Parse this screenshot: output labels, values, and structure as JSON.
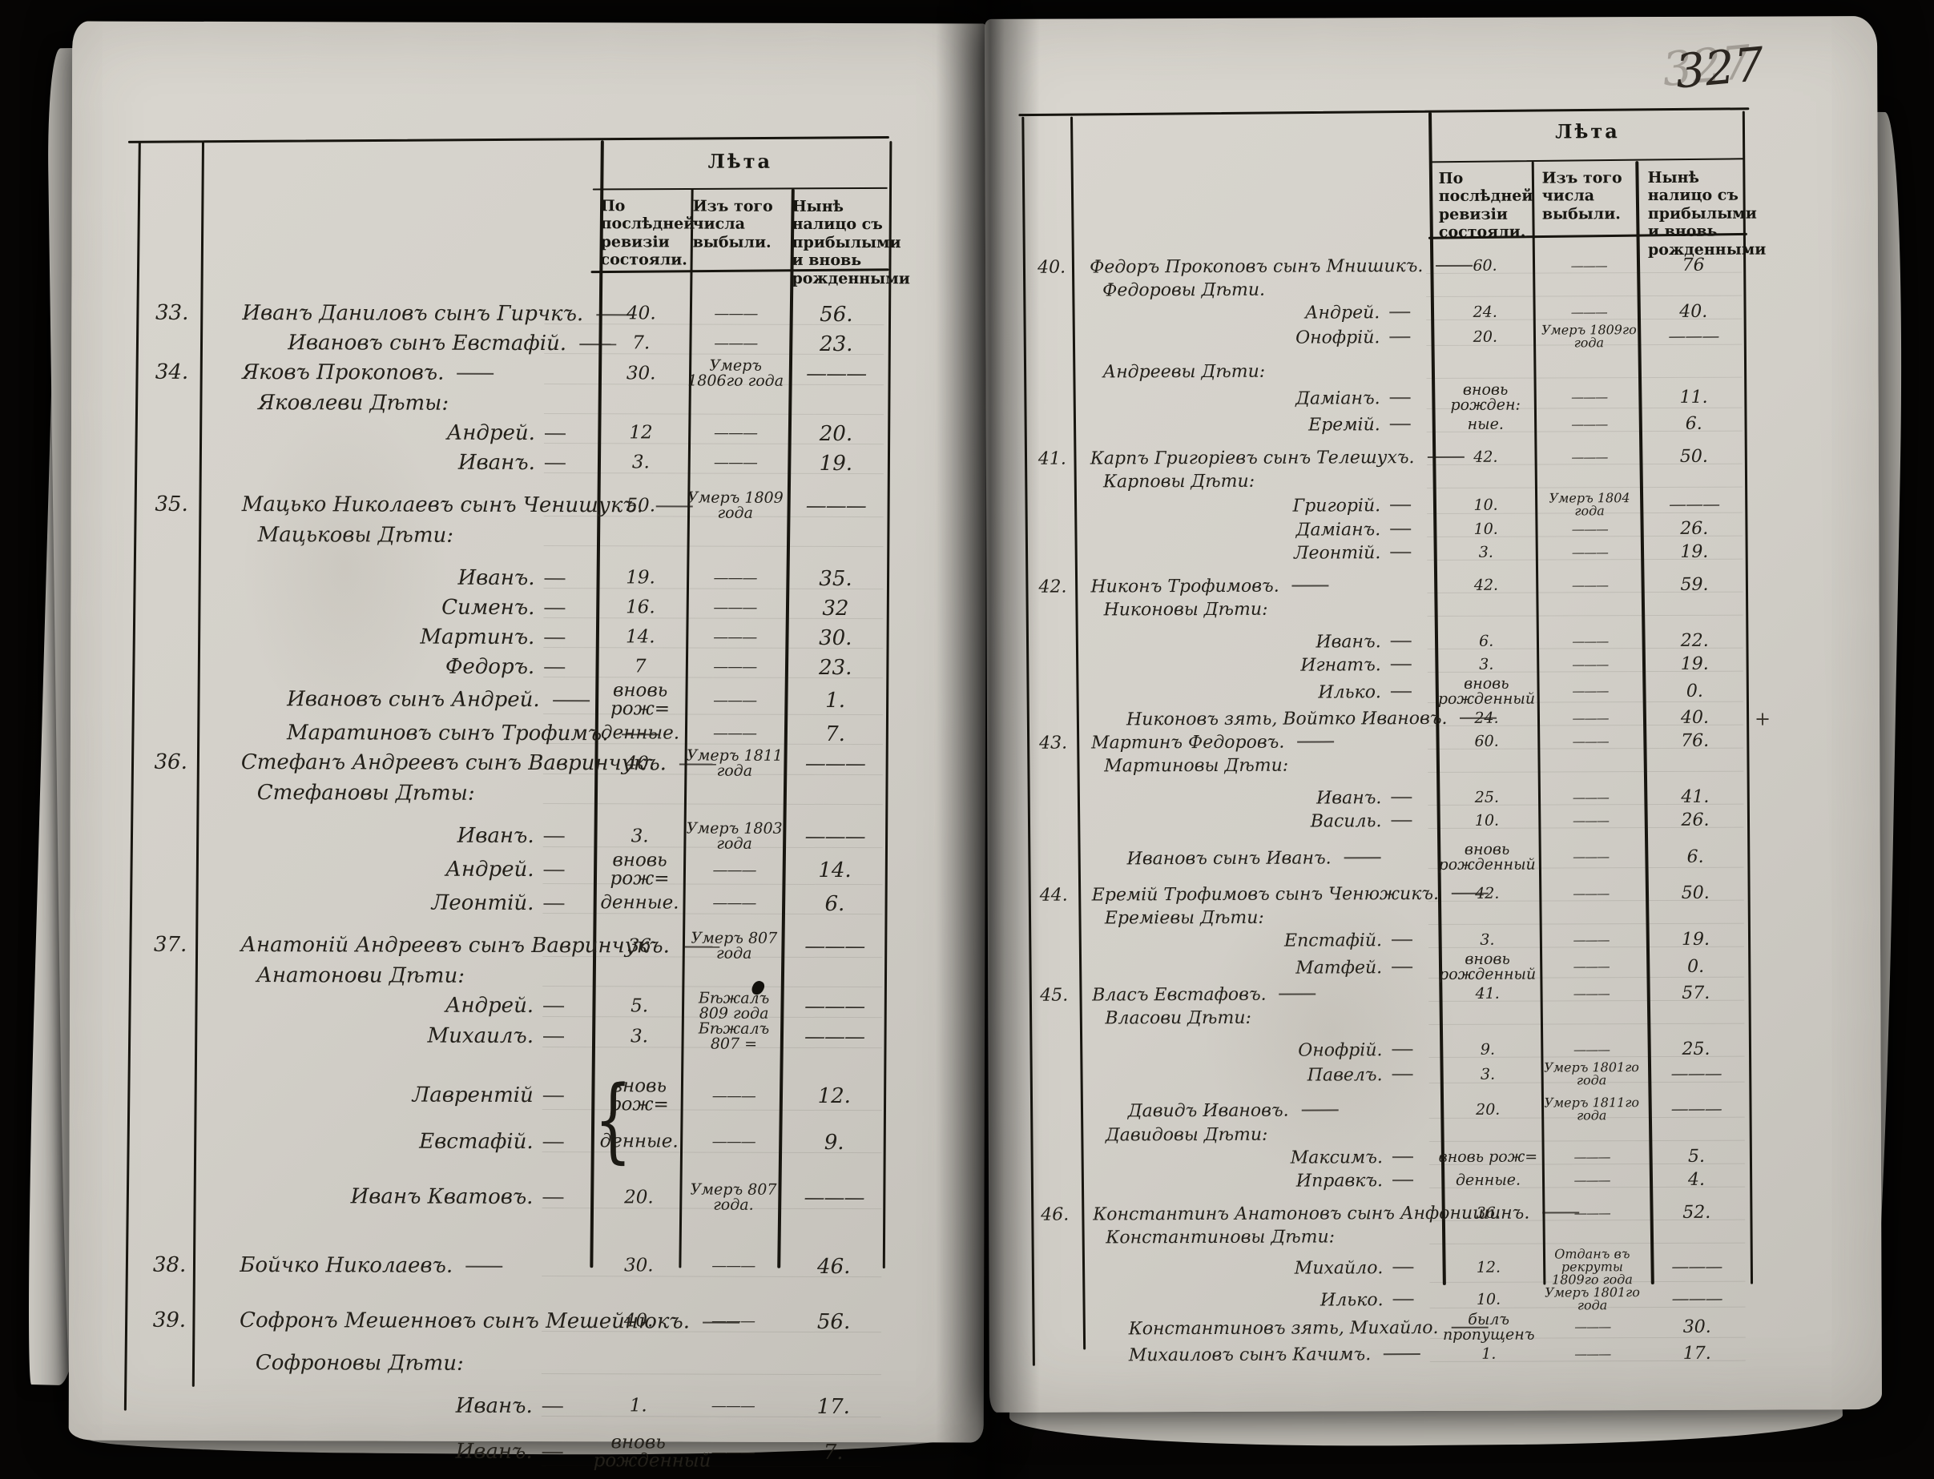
{
  "page_number": "327",
  "header": {
    "era_title": "Лѣта",
    "col_last_revision": "По послѣдней ревизіи состояли.",
    "col_departed": "Изъ того числа выбыли.",
    "col_now_present": "Нынѣ налицо съ прибылыми и вновь рожденными"
  },
  "left_page": {
    "rows": [
      {
        "num": "33.",
        "name": "Иванъ Даниловъ сынъ Гирчкъ.",
        "ind": 0,
        "c1": "40.",
        "c2": "———",
        "c3": "56."
      },
      {
        "name": "Ивановъ сынъ Евстафій.",
        "ind": 2,
        "c1": "7.",
        "c2": "———",
        "c3": "23."
      },
      {
        "num": "34.",
        "name": "Яковъ Прокоповъ.",
        "ind": 0,
        "c1": "30.",
        "c2": "Умеръ 1806го года",
        "c3": "———"
      },
      {
        "name": "Яковлеви Дѣты:",
        "ind": 1
      },
      {
        "name": "Андрей.",
        "ind": 3,
        "c1": "12",
        "c2": "———",
        "c3": "20."
      },
      {
        "name": "Иванъ.",
        "ind": 3,
        "c1": "3.",
        "c2": "———",
        "c3": "19."
      },
      {
        "num": "35.",
        "name": "Мацько Николаевъ сынъ Ченишукъ.",
        "ind": 0,
        "c1": "50.",
        "c2": "Умеръ 1809 года",
        "c3": "———",
        "gap": 1
      },
      {
        "name": "Мацьковы Дѣти:",
        "ind": 1
      },
      {
        "name": "Иванъ.",
        "ind": 3,
        "c1": "19.",
        "c2": "———",
        "c3": "35.",
        "gap": 1
      },
      {
        "name": "Сименъ.",
        "ind": 3,
        "c1": "16.",
        "c2": "———",
        "c3": "32"
      },
      {
        "name": "Мартинъ.",
        "ind": 3,
        "c1": "14.",
        "c2": "———",
        "c3": "30."
      },
      {
        "name": "Федоръ.",
        "ind": 3,
        "c1": "7",
        "c2": "———",
        "c3": "23."
      },
      {
        "name": "Ивановъ сынъ Андрей.",
        "ind": 2,
        "c1": "вновь рож=",
        "c2": "———",
        "c3": "1."
      },
      {
        "name": "Маратиновъ сынъ Трофимъ.",
        "ind": 2,
        "c1": "денные.",
        "c2": "———",
        "c3": "7."
      },
      {
        "num": "36.",
        "name": "Стефанъ Андреевъ сынъ Вавринчукъ.",
        "ind": 0,
        "c1": "40.",
        "c2": "Умеръ 1811 года",
        "c3": "———"
      },
      {
        "name": "Стефановы Дѣты:",
        "ind": 1
      },
      {
        "name": "Иванъ.",
        "ind": 3,
        "c1": "3.",
        "c2": "Умеръ 1803 года",
        "c3": "———",
        "gap": 1
      },
      {
        "name": "Андрей.",
        "ind": 3,
        "c1": "вновь рож=",
        "c2": "———",
        "c3": "14."
      },
      {
        "name": "Леонтій.",
        "ind": 3,
        "c1": "денные.",
        "c2": "———",
        "c3": "6."
      },
      {
        "num": "37.",
        "name": "Анатоній Андреевъ сынъ Вавринчукъ.",
        "ind": 0,
        "c1": "36",
        "c2": "Умеръ 807 года",
        "c3": "———",
        "gap": 1
      },
      {
        "name": "Анатонови Дѣти:",
        "ind": 1
      },
      {
        "name": "Андрей.",
        "ind": 3,
        "c1": "5.",
        "c2": "Бѣжалъ 809 года",
        "c3": "———"
      },
      {
        "name": "Михаилъ.",
        "ind": 3,
        "c1": "3.",
        "c2": "Бѣжалъ 807 =",
        "c3": "———"
      },
      {
        "name": "Лаврентій",
        "ind": 3,
        "brace": true,
        "c1": "вновь рож=",
        "c2": "———",
        "c3": "12.",
        "gap": 2
      },
      {
        "name": "Евстафій.",
        "ind": 3,
        "c1": "денные.",
        "c2": "———",
        "c3": "9.",
        "gap": 1
      },
      {
        "name": "Иванъ Кватовъ.",
        "ind": 3,
        "c1": "20.",
        "c2": "Умеръ 807 года.",
        "c3": "———",
        "gap": 2
      },
      {
        "num": "38.",
        "name": "Бойчко Николаевъ.",
        "ind": 0,
        "c1": "30.",
        "c2": "———",
        "c3": "46.",
        "gap": 3
      },
      {
        "num": "39.",
        "name": "Софронъ Мешенновъ сынъ Мешейнюкъ.",
        "ind": 0,
        "c1": "40.",
        "c2": "———",
        "c3": "56.",
        "gap": 2
      },
      {
        "name": "Софроновы Дѣти:",
        "ind": 1,
        "gap": 1
      },
      {
        "name": "Иванъ.",
        "ind": 3,
        "c1": "1.",
        "c2": "———",
        "c3": "17.",
        "gap": 1
      },
      {
        "name": "Иванъ.",
        "ind": 3,
        "c1": "вновь рожденный",
        "c2": "———",
        "c3": "7.",
        "gap": 1
      }
    ]
  },
  "right_page": {
    "rows": [
      {
        "num": "40.",
        "name": "Федоръ Прокоповъ сынъ Мнишикъ.",
        "ind": 0,
        "c1": "60.",
        "c2": "———",
        "c3": "76"
      },
      {
        "name": "Федоровы Дѣти.",
        "ind": 1
      },
      {
        "name": "Андрей.",
        "ind": 3,
        "c1": "24.",
        "c2": "———",
        "c3": "40."
      },
      {
        "name": "Онофрій.",
        "ind": 3,
        "c1": "20.",
        "c2": "Умеръ 1809го года",
        "c3": "———"
      },
      {
        "name": "Андреевы Дѣти:",
        "ind": 1,
        "gap": 1
      },
      {
        "name": "Даміанъ.",
        "ind": 3,
        "c1": "вновь рожден:",
        "c2": "———",
        "c3": "11."
      },
      {
        "name": "Еремій.",
        "ind": 3,
        "c1": "ные.",
        "c2": "———",
        "c3": "6."
      },
      {
        "num": "41.",
        "name": "Карпъ Григоріевъ сынъ Телешухъ.",
        "ind": 0,
        "c1": "42.",
        "c2": "———",
        "c3": "50.",
        "gap": 1
      },
      {
        "name": "Карповы Дѣти:",
        "ind": 1
      },
      {
        "name": "Григорій.",
        "ind": 3,
        "c1": "10.",
        "c2": "Умеръ 1804 года",
        "c3": "———"
      },
      {
        "name": "Даміанъ.",
        "ind": 3,
        "c1": "10.",
        "c2": "———",
        "c3": "26."
      },
      {
        "name": "Леонтій.",
        "ind": 3,
        "c1": "3.",
        "c2": "———",
        "c3": "19."
      },
      {
        "num": "42.",
        "name": "Никонъ Трофимовъ.",
        "ind": 0,
        "c1": "42.",
        "c2": "———",
        "c3": "59.",
        "gap": 1
      },
      {
        "name": "Никоновы Дѣти:",
        "ind": 1
      },
      {
        "name": "Иванъ.",
        "ind": 3,
        "c1": "6.",
        "c2": "———",
        "c3": "22.",
        "gap": 1
      },
      {
        "name": "Игнатъ.",
        "ind": 3,
        "c1": "3.",
        "c2": "———",
        "c3": "19."
      },
      {
        "name": "Илько.",
        "ind": 3,
        "c1": "вновь рожденный",
        "c2": "———",
        "c3": "0."
      },
      {
        "name": "Никоновъ зять, Войтко Ивановъ.",
        "ind": 2,
        "c1": "24.",
        "c2": "———",
        "c3": "40.",
        "mark": "+"
      },
      {
        "num": "43.",
        "name": "Мартинъ Федоровъ.",
        "ind": 0,
        "c1": "60.",
        "c2": "———",
        "c3": "76."
      },
      {
        "name": "Мартиновы Дѣти:",
        "ind": 1
      },
      {
        "name": "Иванъ.",
        "ind": 3,
        "c1": "25.",
        "c2": "———",
        "c3": "41.",
        "gap": 1
      },
      {
        "name": "Василь.",
        "ind": 3,
        "c1": "10.",
        "c2": "———",
        "c3": "26."
      },
      {
        "name": "Ивановъ сынъ Иванъ.",
        "ind": 2,
        "c1": "вновь рожденный",
        "c2": "———",
        "c3": "6.",
        "gap": 1
      },
      {
        "num": "44.",
        "name": "Еремій Трофимовъ сынъ Ченюжикъ.",
        "ind": 0,
        "c1": "42.",
        "c2": "———",
        "c3": "50.",
        "gap": 1
      },
      {
        "name": "Ереміевы Дѣти:",
        "ind": 1
      },
      {
        "name": "Епстафій.",
        "ind": 3,
        "c1": "3.",
        "c2": "———",
        "c3": "19."
      },
      {
        "name": "Матфей.",
        "ind": 3,
        "c1": "вновь рожденный",
        "c2": "———",
        "c3": "0."
      },
      {
        "num": "45.",
        "name": "Власъ Евстафовъ.",
        "ind": 0,
        "c1": "41.",
        "c2": "———",
        "c3": "57."
      },
      {
        "name": "Власови Дѣти:",
        "ind": 1
      },
      {
        "name": "Онофрій.",
        "ind": 3,
        "c1": "9.",
        "c2": "———",
        "c3": "25.",
        "gap": 1
      },
      {
        "name": "Павелъ.",
        "ind": 3,
        "c1": "3.",
        "c2": "Умеръ 1801го года",
        "c3": "———"
      },
      {
        "name": "Давидъ Ивановъ.",
        "ind": 2,
        "c1": "20.",
        "c2": "Умеръ 1811го года",
        "c3": "———",
        "gap": 1
      },
      {
        "name": "Давидовы Дѣти:",
        "ind": 1
      },
      {
        "name": "Максимъ.",
        "ind": 3,
        "c1": "вновь рож=",
        "c2": "———",
        "c3": "5."
      },
      {
        "name": "Иправкъ.",
        "ind": 3,
        "c1": "денные.",
        "c2": "———",
        "c3": "4."
      },
      {
        "num": "46.",
        "name": "Константинъ Анатоновъ сынъ Анфонишинъ.",
        "ind": 0,
        "c1": "36.",
        "c2": "———",
        "c3": "52.",
        "gap": 1
      },
      {
        "name": "Константиновы Дѣти:",
        "ind": 1
      },
      {
        "name": "Михайло.",
        "ind": 3,
        "c1": "12.",
        "c2": "Отданъ въ рекруты 1809го года",
        "c3": "———"
      },
      {
        "name": "Илько.",
        "ind": 3,
        "c1": "10.",
        "c2": "Умеръ 1801го года",
        "c3": "———"
      },
      {
        "name": "Константиновъ зять, Михайло.",
        "ind": 2,
        "c1": "былъ пропущенъ",
        "c2": "———",
        "c3": "30."
      },
      {
        "name": "Михаиловъ сынъ Качимъ.",
        "ind": 2,
        "c1": "1.",
        "c2": "———",
        "c3": "17."
      }
    ]
  },
  "colors": {
    "paper": "#d4d1ca",
    "ink": "#17150f",
    "background": "#060504"
  }
}
